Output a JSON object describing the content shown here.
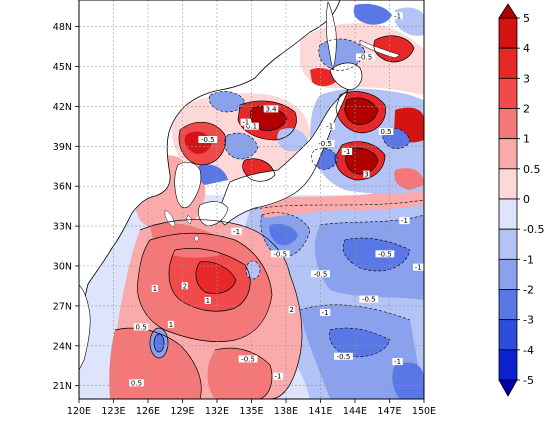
{
  "map": {
    "lon_ticks": [
      "120E",
      "123E",
      "126E",
      "129E",
      "132E",
      "135E",
      "138E",
      "141E",
      "144E",
      "147E",
      "150E"
    ],
    "lat_ticks": [
      "48N",
      "45N",
      "42N",
      "39N",
      "36N",
      "33N",
      "30N",
      "27N",
      "24N",
      "21N"
    ],
    "lon_range": [
      120,
      150
    ],
    "lat_range": [
      20,
      50
    ],
    "gridlines": true,
    "contour_labels": [
      {
        "text": "-1",
        "lon": 147.7,
        "lat": 48.7
      },
      {
        "text": "-0.5",
        "lon": 144.9,
        "lat": 45.6
      },
      {
        "text": "3.4",
        "lon": 136.7,
        "lat": 41.7
      },
      {
        "text": "0.1",
        "lon": 135.0,
        "lat": 40.4
      },
      {
        "text": "-1",
        "lon": 134.5,
        "lat": 40.7
      },
      {
        "text": "-0.5",
        "lon": 131.2,
        "lat": 39.4
      },
      {
        "text": "-1",
        "lon": 141.8,
        "lat": 40.4
      },
      {
        "text": "-0.5",
        "lon": 141.4,
        "lat": 39.1
      },
      {
        "text": "0.5",
        "lon": 146.7,
        "lat": 40.0
      },
      {
        "text": "-1",
        "lon": 143.3,
        "lat": 38.5
      },
      {
        "text": "3",
        "lon": 145.0,
        "lat": 36.8
      },
      {
        "text": "-1",
        "lon": 148.3,
        "lat": 33.3
      },
      {
        "text": "-1",
        "lon": 133.7,
        "lat": 32.5
      },
      {
        "text": "-0.5",
        "lon": 137.5,
        "lat": 30.8
      },
      {
        "text": "-0.5",
        "lon": 141.0,
        "lat": 29.3
      },
      {
        "text": "-0.5",
        "lon": 146.6,
        "lat": 30.8
      },
      {
        "text": "-1",
        "lon": 149.5,
        "lat": 29.8
      },
      {
        "text": "-1",
        "lon": 141.4,
        "lat": 26.4
      },
      {
        "text": "1",
        "lon": 126.6,
        "lat": 28.2
      },
      {
        "text": "2",
        "lon": 129.2,
        "lat": 28.4
      },
      {
        "text": "1",
        "lon": 131.2,
        "lat": 27.3
      },
      {
        "text": "0.5",
        "lon": 125.4,
        "lat": 25.3
      },
      {
        "text": "1",
        "lon": 128.0,
        "lat": 25.5
      },
      {
        "text": "-0.5",
        "lon": 134.7,
        "lat": 22.9
      },
      {
        "text": "-1",
        "lon": 137.3,
        "lat": 21.6
      },
      {
        "text": "-0.5",
        "lon": 143.0,
        "lat": 23.1
      },
      {
        "text": "-1",
        "lon": 147.7,
        "lat": 22.7
      },
      {
        "text": "0.5",
        "lon": 125.0,
        "lat": 21.1
      },
      {
        "text": "-0.5",
        "lon": 145.2,
        "lat": 27.4
      },
      {
        "text": "2",
        "lon": 138.5,
        "lat": 26.6
      }
    ]
  },
  "colorbar": {
    "labels": [
      "5",
      "4",
      "3",
      "2",
      "1",
      "0.5",
      "0",
      "-0.5",
      "-1",
      "-2",
      "-3",
      "-4",
      "-5"
    ],
    "colors": [
      "#b00000",
      "#d41313",
      "#e82828",
      "#f04a4a",
      "#f57878",
      "#faaaaa",
      "#fdd8d8",
      "#dde4fb",
      "#b3c3f5",
      "#8aa2ee",
      "#5a77e6",
      "#2d4cdc",
      "#0b22d2",
      "#0000b0"
    ]
  }
}
